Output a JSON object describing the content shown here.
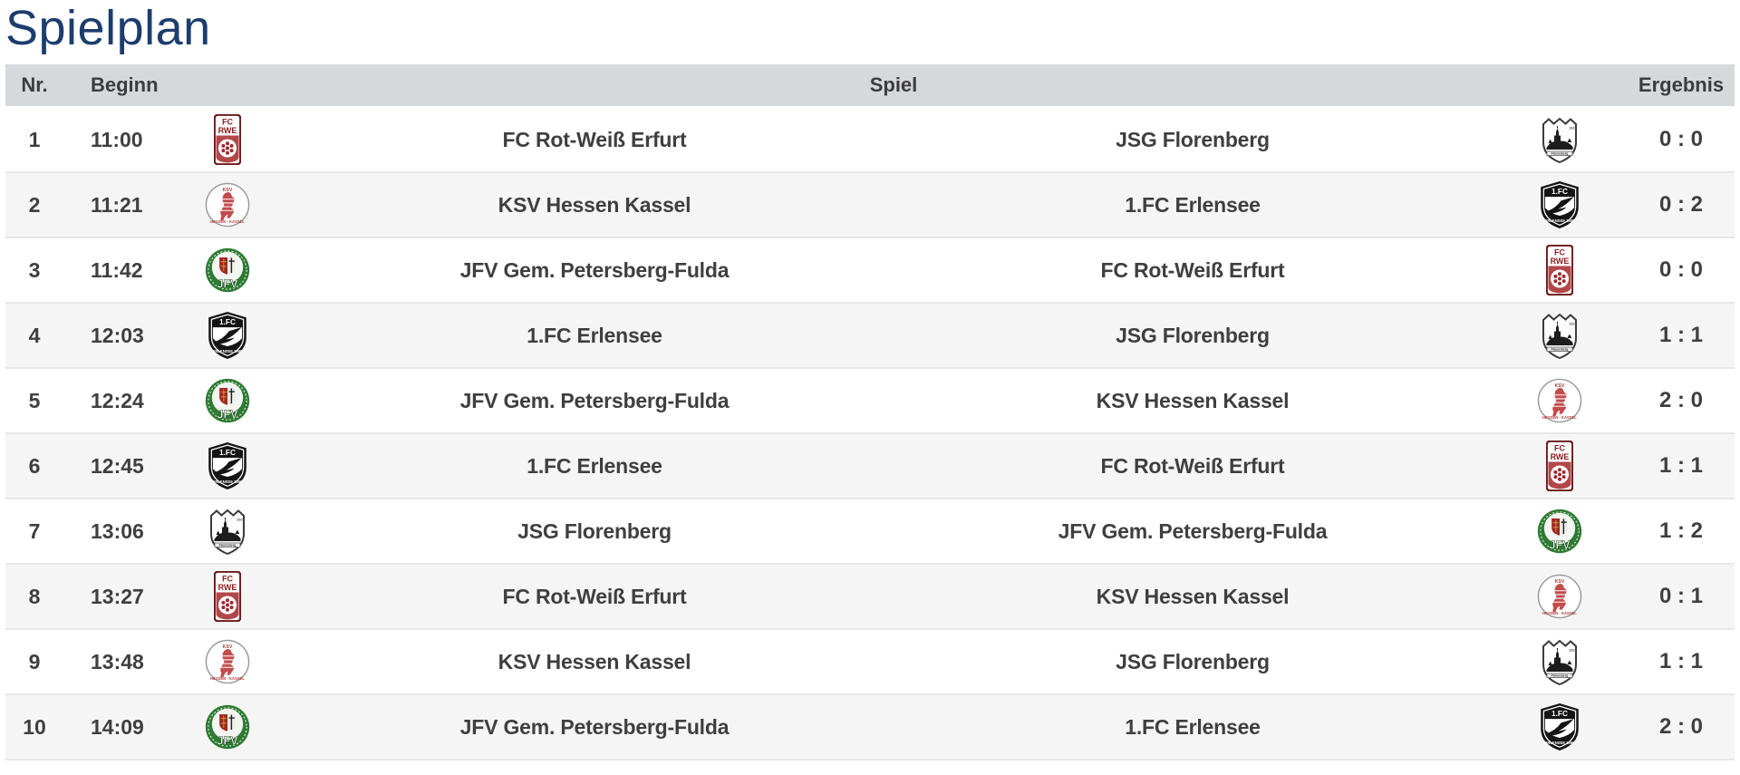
{
  "page": {
    "title": "Spielplan"
  },
  "table": {
    "headers": {
      "nr": "Nr.",
      "beginn": "Beginn",
      "spiel": "Spiel",
      "ergebnis": "Ergebnis"
    },
    "rows": [
      {
        "nr": "1",
        "time": "11:00",
        "home": "FC Rot-Weiß Erfurt",
        "home_logo": "rwe",
        "away": "JSG Florenberg",
        "away_logo": "florenberg",
        "result": "0 : 0"
      },
      {
        "nr": "2",
        "time": "11:21",
        "home": "KSV Hessen Kassel",
        "home_logo": "ksv",
        "away": "1.FC Erlensee",
        "away_logo": "erlensee",
        "result": "0 : 2"
      },
      {
        "nr": "3",
        "time": "11:42",
        "home": "JFV Gem. Petersberg-Fulda",
        "home_logo": "jfv",
        "away": "FC Rot-Weiß Erfurt",
        "away_logo": "rwe",
        "result": "0 : 0"
      },
      {
        "nr": "4",
        "time": "12:03",
        "home": "1.FC Erlensee",
        "home_logo": "erlensee",
        "away": "JSG Florenberg",
        "away_logo": "florenberg",
        "result": "1 : 1"
      },
      {
        "nr": "5",
        "time": "12:24",
        "home": "JFV Gem. Petersberg-Fulda",
        "home_logo": "jfv",
        "away": "KSV Hessen Kassel",
        "away_logo": "ksv",
        "result": "2 : 0"
      },
      {
        "nr": "6",
        "time": "12:45",
        "home": "1.FC Erlensee",
        "home_logo": "erlensee",
        "away": "FC Rot-Weiß Erfurt",
        "away_logo": "rwe",
        "result": "1 : 1"
      },
      {
        "nr": "7",
        "time": "13:06",
        "home": "JSG Florenberg",
        "home_logo": "florenberg",
        "away": "JFV Gem. Petersberg-Fulda",
        "away_logo": "jfv",
        "result": "1 : 2"
      },
      {
        "nr": "8",
        "time": "13:27",
        "home": "FC Rot-Weiß Erfurt",
        "home_logo": "rwe",
        "away": "KSV Hessen Kassel",
        "away_logo": "ksv",
        "result": "0 : 1"
      },
      {
        "nr": "9",
        "time": "13:48",
        "home": "KSV Hessen Kassel",
        "home_logo": "ksv",
        "away": "JSG Florenberg",
        "away_logo": "florenberg",
        "result": "1 : 1"
      },
      {
        "nr": "10",
        "time": "14:09",
        "home": "JFV Gem. Petersberg-Fulda",
        "home_logo": "jfv",
        "away": "1.FC Erlensee",
        "away_logo": "erlensee",
        "result": "2 : 0"
      }
    ]
  },
  "logos": {
    "rwe": "FC Rot-Weiß Erfurt crest",
    "ksv": "KSV Hessen Kassel crest",
    "jfv": "JFV Gem. Petersberg-Fulda crest",
    "erlensee": "1.FC Erlensee crest",
    "florenberg": "JSG Florenberg crest"
  },
  "colors": {
    "title": "#1d3d6e",
    "header_bg": "#d6d9dc",
    "header_text": "#3c3c3c",
    "body_text": "#3f3f3f",
    "row_alt_bg": "#f5f5f5",
    "row_border": "#e7e7e9"
  }
}
